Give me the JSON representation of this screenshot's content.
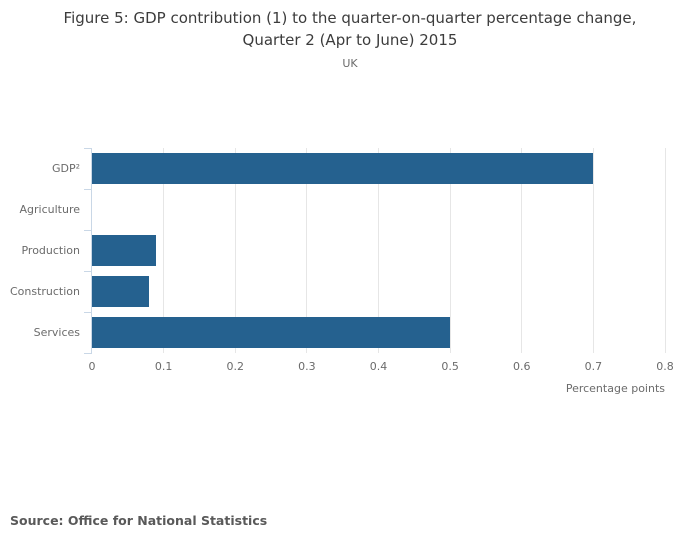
{
  "header": {
    "title_line1": "Figure 5: GDP contribution (1) to the quarter-on-quarter percentage change,",
    "title_line2": "Quarter 2 (Apr to June) 2015",
    "subtitle": "UK"
  },
  "chart_data": {
    "type": "bar",
    "orientation": "horizontal",
    "title": "Figure 5: GDP contribution (1) to the quarter-on-quarter percentage change, Quarter 2 (Apr to June) 2015",
    "subtitle": "UK",
    "categories": [
      "GDP²",
      "Agriculture",
      "Production",
      "Construction",
      "Services"
    ],
    "values": [
      0.7,
      0,
      0.09,
      0.08,
      0.5
    ],
    "xlabel": "Percentage points",
    "ylabel": "",
    "xlim": [
      0,
      0.8
    ],
    "xticks": [
      0,
      0.1,
      0.2,
      0.3,
      0.4,
      0.5,
      0.6,
      0.7,
      0.8
    ],
    "grid": true,
    "legend": "none",
    "bar_color": "#25618f",
    "axis_color": "#c9d7e6",
    "gridline_color": "#e6e6e6",
    "label_color": "#6b6b6b",
    "title_color": "#3c3c3c"
  },
  "footer": {
    "source": "Source: Office for National Statistics"
  }
}
